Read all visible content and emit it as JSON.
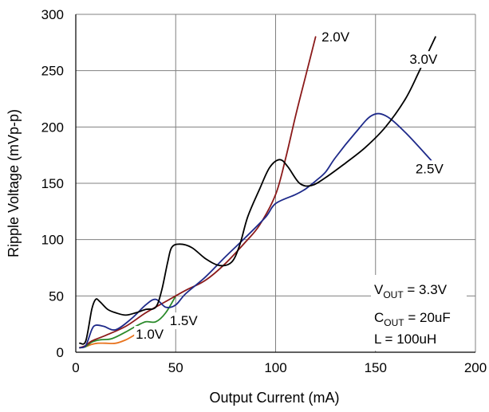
{
  "chart_data": {
    "type": "line",
    "xlabel": "Output Current (mA)",
    "ylabel": "Ripple Voltage (mVp-p)",
    "xlim": [
      0,
      200
    ],
    "ylim": [
      0,
      300
    ],
    "xticks": [
      0,
      50,
      100,
      150,
      200
    ],
    "yticks": [
      0,
      50,
      100,
      150,
      200,
      250,
      300
    ],
    "grid": true,
    "series": [
      {
        "name": "1.0V",
        "color": "#e8731e",
        "points": [
          [
            2,
            4
          ],
          [
            5,
            5
          ],
          [
            8,
            7
          ],
          [
            11,
            8
          ],
          [
            15,
            8
          ],
          [
            20,
            8
          ],
          [
            25,
            11
          ],
          [
            30,
            16
          ]
        ]
      },
      {
        "name": "1.5V",
        "color": "#2a8a2a",
        "points": [
          [
            2,
            4
          ],
          [
            5,
            5
          ],
          [
            8,
            9
          ],
          [
            12,
            11
          ],
          [
            18,
            12
          ],
          [
            25,
            18
          ],
          [
            30,
            23
          ],
          [
            35,
            27
          ],
          [
            40,
            27
          ],
          [
            45,
            35
          ],
          [
            50,
            50
          ]
        ]
      },
      {
        "name": "2.0V",
        "color": "#8b1a1a",
        "points": [
          [
            2,
            4
          ],
          [
            5,
            6
          ],
          [
            8,
            10
          ],
          [
            15,
            15
          ],
          [
            25,
            23
          ],
          [
            35,
            35
          ],
          [
            45,
            45
          ],
          [
            55,
            55
          ],
          [
            65,
            64
          ],
          [
            75,
            79
          ],
          [
            85,
            98
          ],
          [
            92,
            113
          ],
          [
            100,
            140
          ],
          [
            105,
            172
          ],
          [
            110,
            210
          ],
          [
            115,
            245
          ],
          [
            120,
            280
          ]
        ]
      },
      {
        "name": "2.5V",
        "color": "#1e2a8a",
        "points": [
          [
            2,
            4
          ],
          [
            5,
            6
          ],
          [
            8,
            20
          ],
          [
            10,
            24
          ],
          [
            14,
            23
          ],
          [
            20,
            20
          ],
          [
            28,
            30
          ],
          [
            35,
            42
          ],
          [
            40,
            47
          ],
          [
            45,
            40
          ],
          [
            50,
            42
          ],
          [
            55,
            52
          ],
          [
            65,
            67
          ],
          [
            75,
            85
          ],
          [
            85,
            102
          ],
          [
            95,
            120
          ],
          [
            100,
            132
          ],
          [
            110,
            140
          ],
          [
            115,
            145
          ],
          [
            120,
            152
          ],
          [
            125,
            160
          ],
          [
            130,
            173
          ],
          [
            140,
            195
          ],
          [
            148,
            210
          ],
          [
            155,
            210
          ],
          [
            165,
            195
          ],
          [
            178,
            170
          ]
        ]
      },
      {
        "name": "3.0V",
        "color": "#000000",
        "points": [
          [
            2,
            8
          ],
          [
            5,
            10
          ],
          [
            8,
            38
          ],
          [
            10,
            47
          ],
          [
            12,
            45
          ],
          [
            16,
            38
          ],
          [
            20,
            35
          ],
          [
            25,
            33
          ],
          [
            30,
            35
          ],
          [
            35,
            38
          ],
          [
            40,
            40
          ],
          [
            43,
            55
          ],
          [
            46,
            80
          ],
          [
            48,
            93
          ],
          [
            52,
            96
          ],
          [
            58,
            93
          ],
          [
            65,
            83
          ],
          [
            72,
            77
          ],
          [
            78,
            80
          ],
          [
            82,
            95
          ],
          [
            86,
            120
          ],
          [
            92,
            145
          ],
          [
            97,
            164
          ],
          [
            102,
            171
          ],
          [
            106,
            165
          ],
          [
            112,
            150
          ],
          [
            118,
            148
          ],
          [
            125,
            155
          ],
          [
            135,
            168
          ],
          [
            145,
            182
          ],
          [
            155,
            200
          ],
          [
            165,
            225
          ],
          [
            172,
            250
          ],
          [
            180,
            280
          ]
        ]
      }
    ],
    "series_labels": [
      {
        "text": "1.0V",
        "at": [
          30,
          12
        ]
      },
      {
        "text": "1.5V",
        "at": [
          47,
          24
        ]
      },
      {
        "text": "2.0V",
        "at": [
          123,
          276
        ]
      },
      {
        "text": "2.5V",
        "at": [
          170,
          159
        ]
      },
      {
        "text": "3.0V",
        "at": [
          167,
          256
        ]
      }
    ],
    "annotations": {
      "vout": {
        "main": "V",
        "sub": "OUT",
        "rest": " = 3.3V"
      },
      "cout": {
        "main": "C",
        "sub": "OUT",
        "rest": " = 20uF"
      },
      "l": "L = 100uH"
    }
  }
}
